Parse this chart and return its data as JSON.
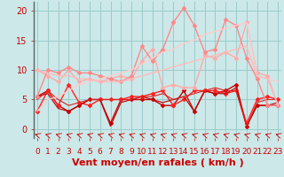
{
  "xlabel": "Vent moyen/en rafales ( km/h )",
  "bg_color": "#cce8e8",
  "grid_color": "#99cccc",
  "x_ticks": [
    0,
    1,
    2,
    3,
    4,
    5,
    6,
    7,
    8,
    9,
    10,
    11,
    12,
    13,
    14,
    15,
    16,
    17,
    18,
    19,
    20,
    21,
    22,
    23
  ],
  "y_ticks": [
    0,
    5,
    10,
    15,
    20
  ],
  "xlim": [
    -0.3,
    23.3
  ],
  "ylim": [
    -1.5,
    21.5
  ],
  "lines": [
    {
      "x": [
        0,
        1,
        2,
        3,
        4,
        5,
        6,
        7,
        8,
        9,
        10,
        11,
        12,
        13,
        14,
        15,
        16,
        17,
        18,
        19,
        20,
        21,
        22,
        23
      ],
      "y": [
        5.5,
        6.5,
        4.0,
        3.0,
        4.0,
        5.0,
        5.0,
        1.0,
        5.0,
        5.0,
        5.0,
        5.0,
        4.0,
        4.0,
        6.5,
        3.0,
        6.5,
        6.0,
        6.5,
        7.5,
        0.5,
        4.0,
        4.0,
        4.0
      ],
      "color": "#cc0000",
      "lw": 1.0,
      "marker": "D",
      "ms": 2.0
    },
    {
      "x": [
        0,
        1,
        2,
        3,
        4,
        5,
        6,
        7,
        8,
        9,
        10,
        11,
        12,
        13,
        14,
        15,
        16,
        17,
        18,
        19,
        20,
        21,
        22,
        23
      ],
      "y": [
        3.0,
        6.5,
        4.0,
        7.5,
        4.5,
        4.0,
        5.0,
        5.0,
        5.0,
        5.5,
        5.5,
        6.0,
        6.5,
        4.0,
        5.0,
        6.5,
        6.5,
        6.5,
        6.0,
        6.5,
        1.0,
        5.0,
        5.5,
        5.0
      ],
      "color": "#ff2222",
      "lw": 1.0,
      "marker": "D",
      "ms": 2.0
    },
    {
      "x": [
        0,
        1,
        2,
        3,
        4,
        5,
        6,
        7,
        8,
        9,
        10,
        11,
        12,
        13,
        14,
        15,
        16,
        17,
        18,
        19,
        20,
        21,
        22,
        23
      ],
      "y": [
        5.5,
        6.0,
        3.5,
        3.0,
        4.0,
        5.0,
        5.0,
        0.5,
        4.5,
        5.0,
        5.5,
        5.0,
        4.5,
        5.0,
        5.5,
        3.0,
        6.5,
        6.0,
        6.0,
        7.0,
        0.5,
        4.0,
        4.0,
        4.5
      ],
      "color": "#bb0000",
      "lw": 0.8,
      "marker": "None",
      "ms": 0
    },
    {
      "x": [
        0,
        1,
        2,
        3,
        4,
        5,
        6,
        7,
        8,
        9,
        10,
        11,
        12,
        13,
        14,
        15,
        16,
        17,
        18,
        19,
        20,
        21,
        22,
        23
      ],
      "y": [
        5.0,
        6.5,
        5.0,
        4.0,
        4.5,
        5.0,
        5.0,
        5.0,
        5.0,
        5.0,
        5.5,
        5.5,
        6.0,
        5.0,
        5.5,
        6.0,
        6.5,
        7.0,
        6.5,
        6.5,
        0.5,
        4.5,
        5.0,
        5.0
      ],
      "color": "#dd2222",
      "lw": 0.8,
      "marker": "None",
      "ms": 0
    },
    {
      "x": [
        0,
        1,
        2,
        3,
        4,
        5,
        6,
        7,
        8,
        9,
        10,
        11,
        12,
        13,
        14,
        15,
        16,
        17,
        18,
        19,
        20,
        21,
        22,
        23
      ],
      "y": [
        10.0,
        9.0,
        8.0,
        10.0,
        8.0,
        8.5,
        8.0,
        8.5,
        9.0,
        8.5,
        11.5,
        13.5,
        7.0,
        7.5,
        7.0,
        7.0,
        12.5,
        12.0,
        13.0,
        12.0,
        18.0,
        9.5,
        9.0,
        4.0
      ],
      "color": "#ffaaaa",
      "lw": 1.0,
      "marker": "D",
      "ms": 2.0
    },
    {
      "x": [
        0,
        1,
        2,
        3,
        4,
        5,
        6,
        7,
        8,
        9,
        10,
        11,
        12,
        13,
        14,
        15,
        16,
        17,
        18,
        19,
        20,
        21,
        22,
        23
      ],
      "y": [
        5.5,
        10.0,
        9.5,
        10.5,
        9.5,
        9.5,
        9.0,
        8.5,
        8.0,
        9.0,
        14.0,
        11.5,
        13.5,
        18.0,
        20.5,
        17.5,
        13.0,
        13.5,
        18.5,
        17.5,
        12.0,
        8.5,
        4.0,
        4.0
      ],
      "color": "#ff8888",
      "lw": 1.0,
      "marker": "D",
      "ms": 2.0
    },
    {
      "x": [
        0,
        1,
        2,
        3,
        4,
        5,
        6,
        7,
        8,
        9,
        10,
        11,
        12,
        13,
        14,
        15,
        16,
        17,
        18,
        19,
        20,
        21,
        22,
        23
      ],
      "y": [
        3.0,
        5.0,
        5.5,
        6.5,
        7.5,
        8.0,
        8.5,
        9.0,
        9.5,
        10.0,
        11.0,
        12.0,
        13.0,
        13.5,
        14.5,
        15.0,
        16.0,
        16.5,
        17.0,
        17.5,
        18.0,
        9.0,
        8.5,
        8.0
      ],
      "color": "#ffcccc",
      "lw": 1.0,
      "marker": "None",
      "ms": 0
    },
    {
      "x": [
        0,
        1,
        2,
        3,
        4,
        5,
        6,
        7,
        8,
        9,
        10,
        11,
        12,
        13,
        14,
        15,
        16,
        17,
        18,
        19,
        20,
        21,
        22,
        23
      ],
      "y": [
        10.0,
        9.5,
        9.0,
        9.0,
        8.5,
        8.5,
        8.0,
        8.0,
        8.0,
        8.5,
        9.0,
        9.5,
        10.0,
        10.5,
        11.0,
        11.5,
        12.0,
        12.5,
        13.0,
        13.5,
        14.0,
        9.0,
        8.5,
        4.0
      ],
      "color": "#ffbbbb",
      "lw": 1.0,
      "marker": "None",
      "ms": 0
    }
  ],
  "tick_color": "#cc0000",
  "xlabel_color": "#cc0000",
  "axis_label_fontsize": 6.5
}
